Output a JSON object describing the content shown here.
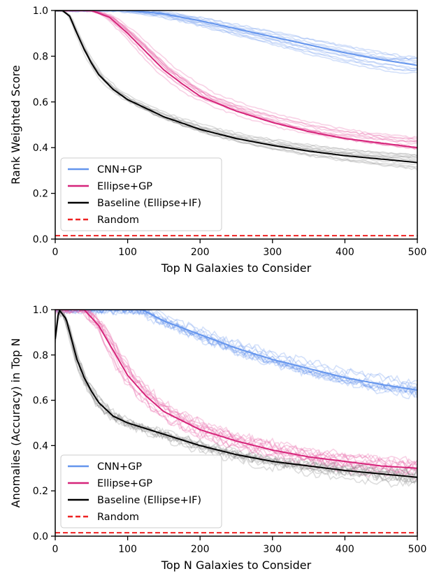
{
  "chart_data": [
    {
      "type": "line",
      "title": "",
      "xlabel": "Top N Galaxies to Consider",
      "ylabel": "Rank Weighted Score",
      "xlim": [
        0,
        500
      ],
      "ylim": [
        0,
        1
      ],
      "xticks": [
        "0",
        "100",
        "200",
        "300",
        "400",
        "500"
      ],
      "yticks": [
        "0.0",
        "0.2",
        "0.4",
        "0.6",
        "0.8",
        "1.0"
      ],
      "legend_position": "lower-left",
      "grid": false,
      "series": [
        {
          "name": "CNN+GP",
          "color": "#6495ed",
          "x": [
            0,
            100,
            150,
            200,
            250,
            300,
            350,
            400,
            450,
            500
          ],
          "y": [
            1.0,
            1.0,
            0.985,
            0.955,
            0.92,
            0.885,
            0.85,
            0.815,
            0.785,
            0.76
          ]
        },
        {
          "name": "Ellipse+GP",
          "color": "#d6247a",
          "x": [
            0,
            50,
            75,
            100,
            125,
            150,
            175,
            200,
            250,
            300,
            350,
            400,
            450,
            500
          ],
          "y": [
            1.0,
            1.0,
            0.97,
            0.9,
            0.82,
            0.74,
            0.68,
            0.625,
            0.56,
            0.51,
            0.47,
            0.44,
            0.42,
            0.4
          ]
        },
        {
          "name": "Baseline (Ellipse+IF)",
          "color": "#000000",
          "x": [
            0,
            10,
            20,
            30,
            40,
            50,
            60,
            80,
            100,
            150,
            200,
            250,
            300,
            350,
            400,
            450,
            500
          ],
          "y": [
            1.0,
            1.0,
            0.975,
            0.9,
            0.83,
            0.77,
            0.72,
            0.655,
            0.61,
            0.535,
            0.48,
            0.44,
            0.41,
            0.385,
            0.365,
            0.35,
            0.335
          ]
        },
        {
          "name": "Random",
          "color": "#ee2222",
          "style": "dashed",
          "x": [
            0,
            500
          ],
          "y": [
            0.015,
            0.015
          ]
        }
      ]
    },
    {
      "type": "line",
      "title": "",
      "xlabel": "Top N Galaxies to Consider",
      "ylabel": "Anomalies (Accuracy) in Top N",
      "xlim": [
        0,
        500
      ],
      "ylim": [
        0,
        1
      ],
      "xticks": [
        "0",
        "100",
        "200",
        "300",
        "400",
        "500"
      ],
      "yticks": [
        "0.0",
        "0.2",
        "0.4",
        "0.6",
        "0.8",
        "1.0"
      ],
      "legend_position": "lower-left",
      "grid": false,
      "series": [
        {
          "name": "CNN+GP",
          "color": "#6495ed",
          "x": [
            0,
            120,
            150,
            200,
            250,
            300,
            350,
            400,
            450,
            500
          ],
          "y": [
            1.0,
            1.0,
            0.95,
            0.89,
            0.83,
            0.78,
            0.74,
            0.7,
            0.67,
            0.645
          ]
        },
        {
          "name": "Ellipse+GP",
          "color": "#d6247a",
          "x": [
            0,
            40,
            60,
            80,
            100,
            125,
            150,
            200,
            250,
            300,
            350,
            400,
            450,
            500
          ],
          "y": [
            1.0,
            1.0,
            0.93,
            0.82,
            0.71,
            0.62,
            0.55,
            0.47,
            0.42,
            0.38,
            0.35,
            0.33,
            0.31,
            0.3
          ]
        },
        {
          "name": "Baseline (Ellipse+IF)",
          "color": "#000000",
          "x": [
            0,
            5,
            15,
            20,
            30,
            40,
            50,
            60,
            80,
            100,
            150,
            200,
            250,
            300,
            350,
            400,
            450,
            500
          ],
          "y": [
            0.87,
            1.0,
            0.96,
            0.9,
            0.78,
            0.7,
            0.64,
            0.59,
            0.53,
            0.5,
            0.45,
            0.4,
            0.36,
            0.33,
            0.31,
            0.29,
            0.275,
            0.26
          ]
        },
        {
          "name": "Random",
          "color": "#ee2222",
          "style": "dashed",
          "x": [
            0,
            500
          ],
          "y": [
            0.015,
            0.015
          ]
        }
      ]
    }
  ],
  "background_trials": {
    "color_cnn": "#6495ed",
    "color_ellipse": "#e75aa0",
    "color_baseline": "#888888"
  }
}
